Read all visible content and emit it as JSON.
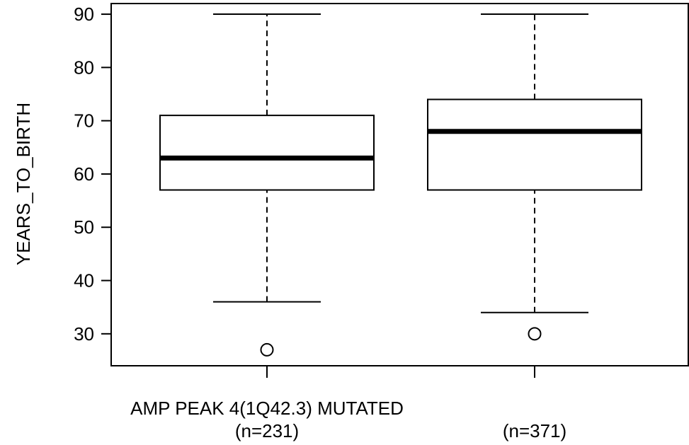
{
  "chart_data": {
    "type": "boxplot",
    "ylabel": "YEARS_TO_BIRTH",
    "ylim": [
      24,
      92
    ],
    "yticks": [
      30,
      40,
      50,
      60,
      70,
      80,
      90
    ],
    "grid": false,
    "categories": [
      {
        "label": "AMP PEAK  4(1Q42.3) MUTATED",
        "n": "(n=231)"
      },
      {
        "label": "",
        "n": "(n=371)"
      }
    ],
    "boxes": [
      {
        "whisker_low": 36,
        "q1": 57,
        "median": 63,
        "q3": 71,
        "whisker_high": 90,
        "outliers": [
          27
        ]
      },
      {
        "whisker_low": 34,
        "q1": 57,
        "median": 68,
        "q3": 74,
        "whisker_high": 90,
        "outliers": [
          30
        ]
      }
    ]
  }
}
